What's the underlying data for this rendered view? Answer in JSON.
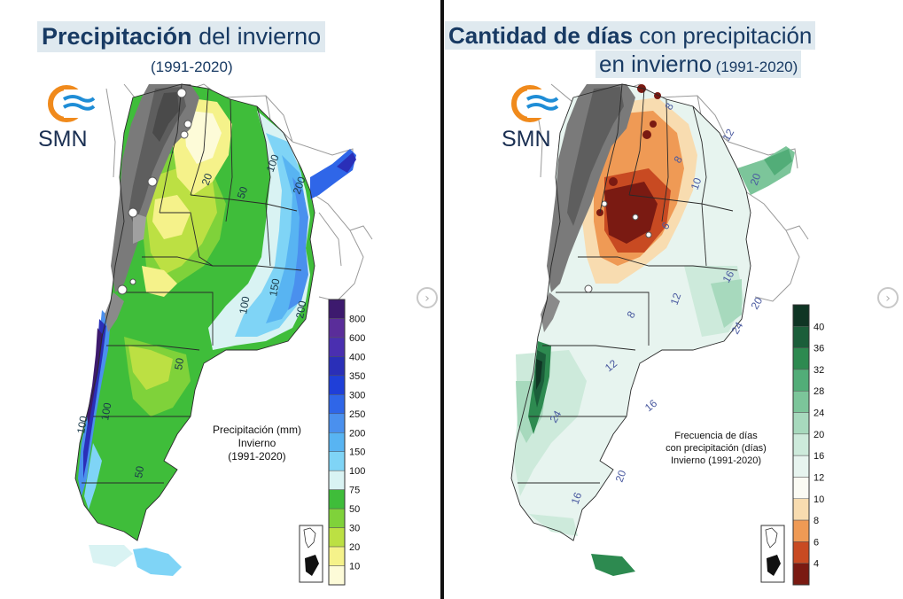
{
  "left_panel": {
    "title_strong": "Precipitación",
    "title_light": " del invierno",
    "title_period": "(1991-2020)",
    "logo_text": "SMN",
    "legend_title": [
      "Precipitación (mm)",
      "Invierno",
      "(1991-2020)"
    ],
    "legend": [
      {
        "label": "800",
        "color": "#3d1a6e"
      },
      {
        "label": "600",
        "color": "#5a2d9a"
      },
      {
        "label": "400",
        "color": "#4a2fb0"
      },
      {
        "label": "350",
        "color": "#2a2fb8"
      },
      {
        "label": "300",
        "color": "#1f3fd8"
      },
      {
        "label": "250",
        "color": "#2f66e8"
      },
      {
        "label": "200",
        "color": "#4a90ee"
      },
      {
        "label": "150",
        "color": "#58b4f2"
      },
      {
        "label": "100",
        "color": "#7fd4f6"
      },
      {
        "label": "75",
        "color": "#d9f3f3"
      },
      {
        "label": "50",
        "color": "#3fbd3a"
      },
      {
        "label": "30",
        "color": "#7fd23a"
      },
      {
        "label": "20",
        "color": "#bce043"
      },
      {
        "label": "10",
        "color": "#f5f28a"
      },
      {
        "label": "",
        "color": "#fdfbd8"
      }
    ],
    "map_labels": [
      "20",
      "50",
      "100",
      "200",
      "100",
      "150",
      "200",
      "100",
      "50",
      "50",
      "100"
    ]
  },
  "right_panel": {
    "title_strong": "Cantidad de días",
    "title_light": " con precipitación",
    "title_line2": "en invierno",
    "title_period": "(1991-2020)",
    "logo_text": "SMN",
    "legend_title": [
      "Frecuencia de días",
      "con precipitación (días)",
      "Invierno (1991-2020)"
    ],
    "legend": [
      {
        "label": "40",
        "color": "#0f3524"
      },
      {
        "label": "36",
        "color": "#1b5e3a"
      },
      {
        "label": "32",
        "color": "#2d8a50"
      },
      {
        "label": "28",
        "color": "#52ad78"
      },
      {
        "label": "24",
        "color": "#7cc59a"
      },
      {
        "label": "20",
        "color": "#a7d9bd"
      },
      {
        "label": "16",
        "color": "#cdeadb"
      },
      {
        "label": "12",
        "color": "#e7f4ef"
      },
      {
        "label": "10",
        "color": "#fbfbf4"
      },
      {
        "label": "8",
        "color": "#f8dcb0"
      },
      {
        "label": "6",
        "color": "#ef9a55"
      },
      {
        "label": "4",
        "color": "#c84a22"
      },
      {
        "label": "",
        "color": "#7a1a12"
      }
    ],
    "map_labels": [
      "8",
      "12",
      "10",
      "20",
      "8",
      "6",
      "16",
      "12",
      "20",
      "24",
      "8",
      "12",
      "16",
      "24",
      "20",
      "16"
    ]
  },
  "colors": {
    "title_text": "#183a63",
    "title_bg": "#dfe9ef",
    "logo_orange": "#f08a1c",
    "logo_blue": "#1f8dd6",
    "divider": "#111111"
  },
  "icons": [
    "smn-logo-icon",
    "chevron-right-icon",
    "antarctica-inset-icon"
  ]
}
